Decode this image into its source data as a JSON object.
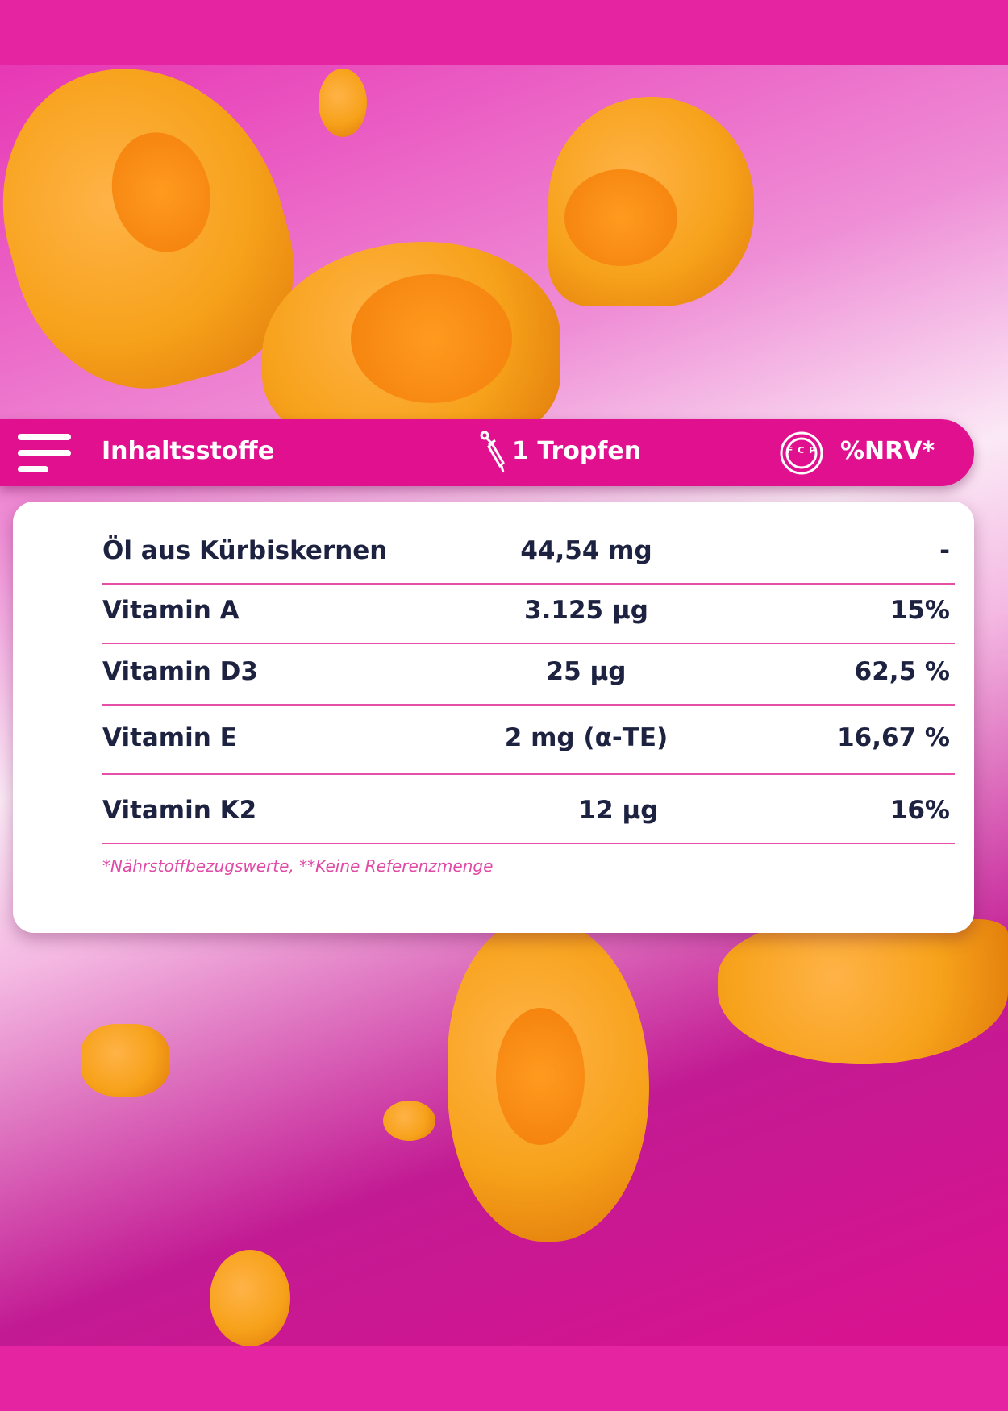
{
  "header": {
    "title": "Inhaltsstoffe",
    "dose": "1 Tropfen",
    "nrv": "%NRV*",
    "nrv_icon_letters": "F C P"
  },
  "table": {
    "rows": [
      {
        "name": "Öl aus Kürbiskernen",
        "amount": "44,54 mg",
        "nrv": "-"
      },
      {
        "name": "Vitamin A",
        "amount": "3.125 µg",
        "nrv": "15%"
      },
      {
        "name": "Vitamin D3",
        "amount": "25 µg",
        "nrv": "62,5 %"
      },
      {
        "name": "Vitamin E",
        "amount": "2 mg (α-TE)",
        "nrv": "16,67 %"
      },
      {
        "name": "Vitamin K2",
        "amount": "12 µg",
        "nrv": "16%"
      }
    ],
    "footnote": "*Nährstoffbezugswerte, **Keine Referenzmenge"
  },
  "colors": {
    "brand": "#e0108f",
    "text": "#1d2240",
    "divider": "#e64fa8"
  }
}
